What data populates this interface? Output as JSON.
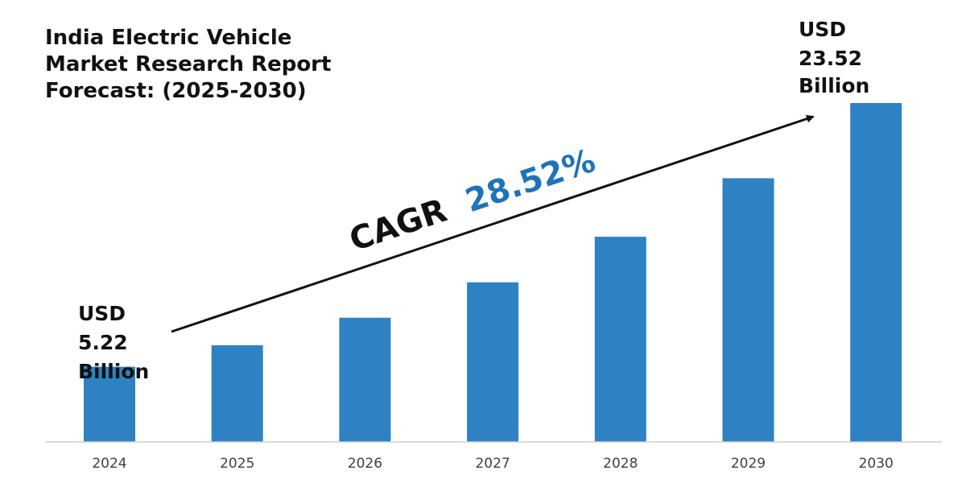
{
  "colors": {
    "bar": "#2e82c4",
    "accent": "#1f73b8",
    "text": "#111111",
    "axis": "#d0d0d0",
    "tick_text": "#404040"
  },
  "chart_data": {
    "type": "bar",
    "title_lines": [
      "India Electric Vehicle",
      "Market Research Report",
      "Forecast: (2025-2030)"
    ],
    "categories": [
      "2024",
      "2025",
      "2026",
      "2027",
      "2028",
      "2029",
      "2030"
    ],
    "values": [
      5.22,
      6.71,
      8.62,
      11.08,
      14.24,
      18.3,
      23.52
    ],
    "unit": "USD Billion",
    "ylim": [
      0,
      25
    ],
    "grid": false,
    "start_annotation": [
      "USD",
      "5.22",
      "Billion"
    ],
    "end_annotation": [
      "USD",
      "23.52",
      "Billion"
    ],
    "trend_annotation": {
      "prefix": "CAGR",
      "value": "28.52%"
    }
  }
}
